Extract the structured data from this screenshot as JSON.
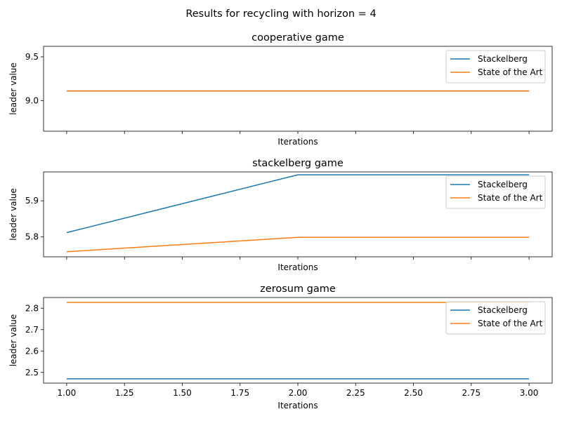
{
  "figure": {
    "suptitle": "Results for recycling with horizon = 4"
  },
  "chart_data": [
    {
      "type": "line",
      "title": "cooperative game",
      "xlabel": "Iterations",
      "ylabel": "leader value",
      "x": [
        1.0,
        2.0,
        3.0
      ],
      "xlim": [
        0.9,
        3.1
      ],
      "ylim": [
        8.65,
        9.62
      ],
      "xticks": [
        1.0,
        1.25,
        1.5,
        1.75,
        2.0,
        2.25,
        2.5,
        2.75,
        3.0
      ],
      "xtick_labels_visible": false,
      "yticks": [
        9.0,
        9.5
      ],
      "ytick_labels": [
        "9.0",
        "9.5"
      ],
      "legend": "upper right",
      "grid": false,
      "series": [
        {
          "name": "Stackelberg",
          "color": "#1f77b4",
          "values": [
            9.11,
            9.11,
            9.11
          ]
        },
        {
          "name": "State of the Art",
          "color": "#ff7f0e",
          "values": [
            9.11,
            9.11,
            9.11
          ]
        }
      ]
    },
    {
      "type": "line",
      "title": "stackelberg game",
      "xlabel": "Iterations",
      "ylabel": "leader value",
      "x": [
        1.0,
        2.0,
        3.0
      ],
      "xlim": [
        0.9,
        3.1
      ],
      "ylim": [
        5.745,
        5.98
      ],
      "xticks": [
        1.0,
        1.25,
        1.5,
        1.75,
        2.0,
        2.25,
        2.5,
        2.75,
        3.0
      ],
      "xtick_labels_visible": false,
      "yticks": [
        5.8,
        5.9
      ],
      "ytick_labels": [
        "5.8",
        "5.9"
      ],
      "legend": "upper right",
      "grid": false,
      "series": [
        {
          "name": "Stackelberg",
          "color": "#1f77b4",
          "values": [
            5.812,
            5.972,
            5.972
          ]
        },
        {
          "name": "State of the Art",
          "color": "#ff7f0e",
          "values": [
            5.759,
            5.799,
            5.799
          ]
        }
      ]
    },
    {
      "type": "line",
      "title": "zerosum game",
      "xlabel": "Iterations",
      "ylabel": "leader value",
      "x": [
        1.0,
        2.0,
        3.0
      ],
      "xlim": [
        0.9,
        3.1
      ],
      "ylim": [
        2.45,
        2.85
      ],
      "xticks": [
        1.0,
        1.25,
        1.5,
        1.75,
        2.0,
        2.25,
        2.5,
        2.75,
        3.0
      ],
      "xtick_labels_visible": true,
      "xtick_labels": [
        "1.00",
        "1.25",
        "1.50",
        "1.75",
        "2.00",
        "2.25",
        "2.50",
        "2.75",
        "3.00"
      ],
      "yticks": [
        2.5,
        2.6,
        2.7,
        2.8
      ],
      "ytick_labels": [
        "2.5",
        "2.6",
        "2.7",
        "2.8"
      ],
      "legend": "upper right",
      "grid": false,
      "series": [
        {
          "name": "Stackelberg",
          "color": "#1f77b4",
          "values": [
            2.47,
            2.47,
            2.47
          ]
        },
        {
          "name": "State of the Art",
          "color": "#ff7f0e",
          "values": [
            2.827,
            2.827,
            2.827
          ]
        }
      ]
    }
  ]
}
